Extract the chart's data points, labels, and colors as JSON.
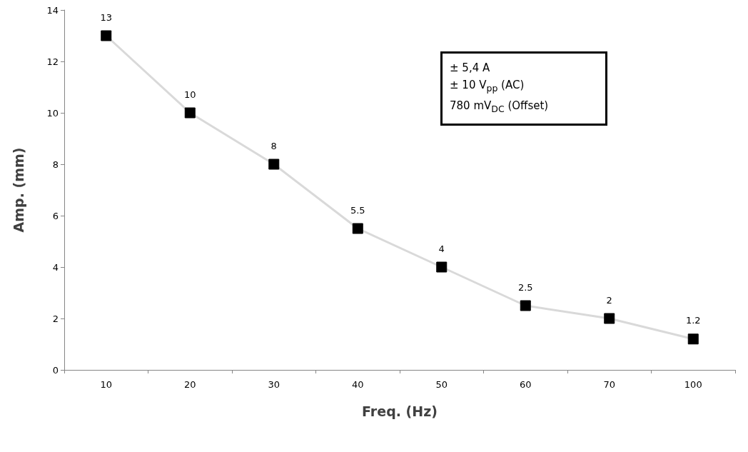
{
  "chart_data": {
    "type": "line",
    "xlabel": "Freq. (Hz)",
    "ylabel": "Amp. (mm)",
    "categories": [
      "10",
      "20",
      "30",
      "40",
      "50",
      "60",
      "70",
      "100"
    ],
    "series": [
      {
        "color": "#d9d9d9",
        "values": [
          13,
          10,
          8,
          5.5,
          4,
          2.5,
          2,
          1.2
        ]
      }
    ],
    "ylim": [
      0,
      14
    ],
    "yticks": [
      0,
      2,
      4,
      6,
      8,
      10,
      12,
      14
    ],
    "grid": false,
    "marker": "square",
    "data_labels": true,
    "annotations": [
      "± 5,4 A",
      "± 10 V$_{pp}$ (AC)",
      "780 mV$_{DC}$ (Offset)"
    ]
  }
}
